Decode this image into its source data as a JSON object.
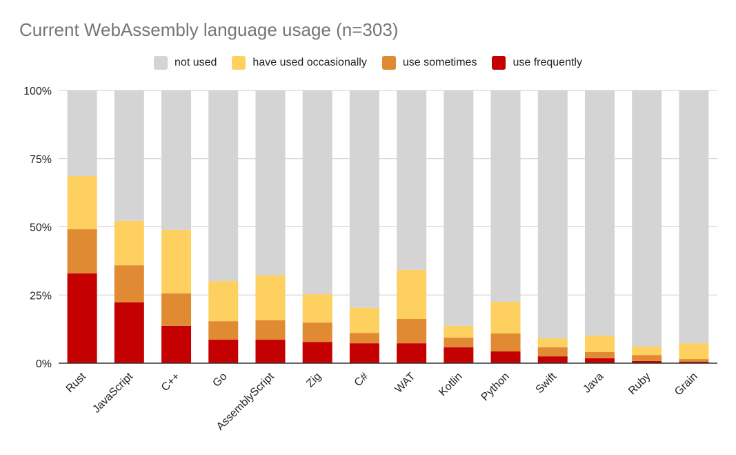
{
  "chart_data": {
    "type": "bar",
    "stacked": true,
    "title": "Current WebAssembly language usage (n=303)",
    "xlabel": "",
    "ylabel": "",
    "ylim": [
      0,
      100
    ],
    "yticks": [
      "0%",
      "25%",
      "50%",
      "75%",
      "100%"
    ],
    "grid": true,
    "legend_position": "top",
    "categories": [
      "Rust",
      "JavaScript",
      "C++",
      "Go",
      "AssemblyScript",
      "Zig",
      "C#",
      "WAT",
      "Kotlin",
      "Python",
      "Swift",
      "Java",
      "Ruby",
      "Grain"
    ],
    "series": [
      {
        "name": "use frequently",
        "color": "#c40000",
        "values": [
          32.9,
          22.3,
          13.7,
          8.6,
          8.6,
          7.8,
          7.3,
          7.3,
          5.8,
          4.3,
          2.5,
          1.8,
          0.8,
          0.5
        ]
      },
      {
        "name": "use sometimes",
        "color": "#e08a33",
        "values": [
          16.2,
          13.6,
          11.9,
          6.8,
          7.1,
          7.1,
          3.8,
          8.9,
          3.6,
          6.6,
          3.3,
          2.3,
          2.2,
          1.0
        ]
      },
      {
        "name": "have used occasionally",
        "color": "#fdd05f",
        "values": [
          19.5,
          16.3,
          23.3,
          14.7,
          16.5,
          10.4,
          9.2,
          18.0,
          4.3,
          11.6,
          3.3,
          6.0,
          3.1,
          5.8
        ]
      },
      {
        "name": "not used",
        "color": "#d4d4d4",
        "values": [
          31.4,
          47.8,
          51.1,
          69.9,
          67.8,
          74.7,
          79.7,
          65.8,
          86.3,
          77.5,
          90.9,
          89.9,
          93.9,
          92.7
        ]
      }
    ],
    "legend_order": [
      "not used",
      "have used occasionally",
      "use sometimes",
      "use frequently"
    ]
  }
}
